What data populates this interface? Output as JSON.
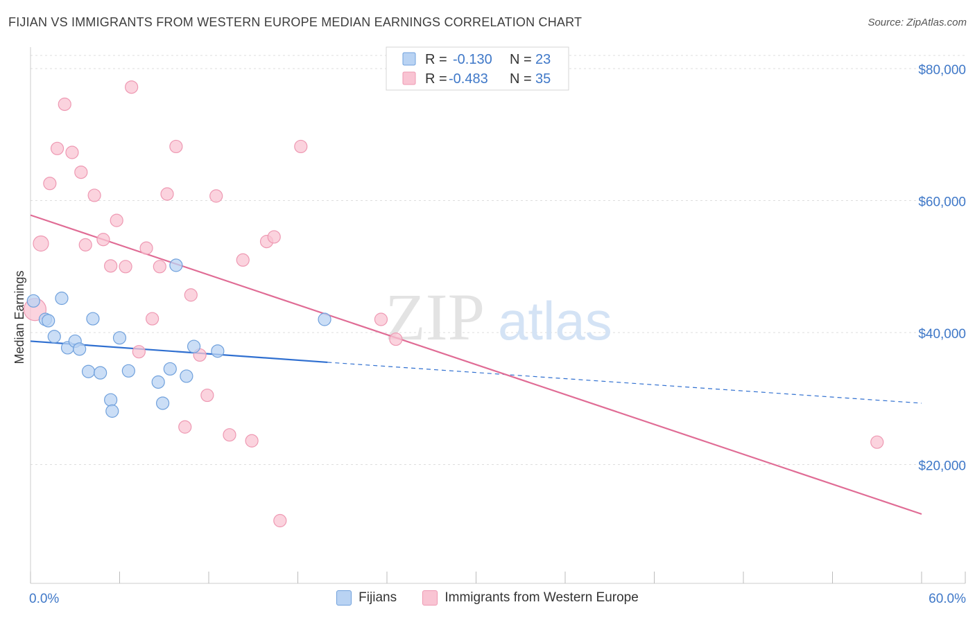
{
  "header": {
    "title": "FIJIAN VS IMMIGRANTS FROM WESTERN EUROPE MEDIAN EARNINGS CORRELATION CHART",
    "source": "Source: ZipAtlas.com"
  },
  "watermark": {
    "zip": "ZIP",
    "atlas": "atlas"
  },
  "legend": {
    "r_label": "R =",
    "n_label": "N =",
    "rows": [
      {
        "r": "-0.130",
        "n": "23"
      },
      {
        "r": "-0.483",
        "n": "35"
      }
    ]
  },
  "colors": {
    "fijians_fill": "#b9d3f3",
    "fijians_stroke": "#6fa0dc",
    "fijians_line": "#2f6fd0",
    "immigrants_fill": "#f9c4d3",
    "immigrants_stroke": "#ee98b2",
    "immigrants_line": "#e06c95",
    "tick_text": "#3f78c8",
    "grid": "#dddddd"
  },
  "chart_data": {
    "type": "scatter",
    "title": "FIJIAN VS IMMIGRANTS FROM WESTERN EUROPE MEDIAN EARNINGS CORRELATION CHART",
    "xlabel": "",
    "ylabel": "Median Earnings",
    "xlim": [
      0,
      60
    ],
    "ylim": [
      2000,
      82000
    ],
    "x_tick_labels": [
      "0.0%",
      "60.0%"
    ],
    "y_ticks": [
      20000,
      40000,
      60000,
      80000
    ],
    "y_tick_labels": [
      "$20,000",
      "$40,000",
      "$60,000",
      "$80,000"
    ],
    "legend_position": "top-center",
    "series": [
      {
        "name": "Fijians",
        "r": -0.13,
        "n": 23,
        "trend": {
          "x0": 0,
          "y0": 38700,
          "x1": 20,
          "y1": 35500,
          "dash_to_x": 60,
          "dash_to_y": 29300
        },
        "points": [
          {
            "x": 0.2,
            "y": 44800
          },
          {
            "x": 1.0,
            "y": 42000
          },
          {
            "x": 1.2,
            "y": 41800
          },
          {
            "x": 2.1,
            "y": 45200
          },
          {
            "x": 1.6,
            "y": 39400
          },
          {
            "x": 2.5,
            "y": 37700
          },
          {
            "x": 3.0,
            "y": 38700
          },
          {
            "x": 3.3,
            "y": 37500
          },
          {
            "x": 3.9,
            "y": 34100
          },
          {
            "x": 4.2,
            "y": 42100
          },
          {
            "x": 4.7,
            "y": 33900
          },
          {
            "x": 5.4,
            "y": 29800
          },
          {
            "x": 5.5,
            "y": 28100
          },
          {
            "x": 6.0,
            "y": 39200
          },
          {
            "x": 6.6,
            "y": 34200
          },
          {
            "x": 8.6,
            "y": 32500
          },
          {
            "x": 8.9,
            "y": 29300
          },
          {
            "x": 9.4,
            "y": 34500
          },
          {
            "x": 9.8,
            "y": 50200
          },
          {
            "x": 10.5,
            "y": 33400
          },
          {
            "x": 11.0,
            "y": 37900
          },
          {
            "x": 12.6,
            "y": 37200
          },
          {
            "x": 19.8,
            "y": 42000
          }
        ]
      },
      {
        "name": "Immigrants from Western Europe",
        "r": -0.483,
        "n": 35,
        "trend": {
          "x0": 0,
          "y0": 57800,
          "x1": 60,
          "y1": 12500
        },
        "points": [
          {
            "x": 0.3,
            "y": 43500
          },
          {
            "x": 0.7,
            "y": 53500
          },
          {
            "x": 1.3,
            "y": 62600
          },
          {
            "x": 1.8,
            "y": 67900
          },
          {
            "x": 2.3,
            "y": 74600
          },
          {
            "x": 2.8,
            "y": 67300
          },
          {
            "x": 3.4,
            "y": 64300
          },
          {
            "x": 3.7,
            "y": 53300
          },
          {
            "x": 4.3,
            "y": 60800
          },
          {
            "x": 4.9,
            "y": 54100
          },
          {
            "x": 5.4,
            "y": 50100
          },
          {
            "x": 5.8,
            "y": 57000
          },
          {
            "x": 6.4,
            "y": 50000
          },
          {
            "x": 6.8,
            "y": 77200
          },
          {
            "x": 7.3,
            "y": 37100
          },
          {
            "x": 7.8,
            "y": 52800
          },
          {
            "x": 8.2,
            "y": 42100
          },
          {
            "x": 8.7,
            "y": 50000
          },
          {
            "x": 9.2,
            "y": 61000
          },
          {
            "x": 9.8,
            "y": 68200
          },
          {
            "x": 10.4,
            "y": 25700
          },
          {
            "x": 10.8,
            "y": 45700
          },
          {
            "x": 11.4,
            "y": 36600
          },
          {
            "x": 11.9,
            "y": 30500
          },
          {
            "x": 12.5,
            "y": 60700
          },
          {
            "x": 13.4,
            "y": 24500
          },
          {
            "x": 14.3,
            "y": 51000
          },
          {
            "x": 14.9,
            "y": 23600
          },
          {
            "x": 15.9,
            "y": 53800
          },
          {
            "x": 16.4,
            "y": 54500
          },
          {
            "x": 16.8,
            "y": 11500
          },
          {
            "x": 18.2,
            "y": 68200
          },
          {
            "x": 23.6,
            "y": 42000
          },
          {
            "x": 24.6,
            "y": 39000
          },
          {
            "x": 57.0,
            "y": 23400
          }
        ]
      }
    ]
  },
  "bottom_legend": [
    {
      "label": "Fijians"
    },
    {
      "label": "Immigrants from Western Europe"
    }
  ]
}
